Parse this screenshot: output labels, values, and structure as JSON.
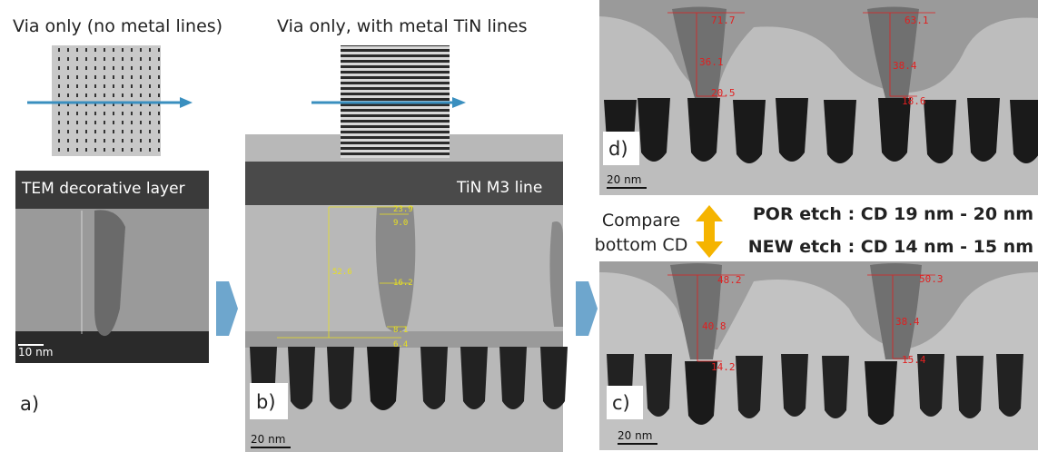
{
  "panel_a": {
    "title": "Via only (no metal lines)",
    "overlay": "TEM decorative layer",
    "scale_bar": "10 nm",
    "label": "a)"
  },
  "panel_b": {
    "title": "Via only, with metal TiN lines",
    "overlay": "TiN M3 line",
    "scale_bar": "20 nm",
    "label": "b)",
    "measurements": [
      "23.9",
      "9.0",
      "52.6",
      "16.2",
      "8.1",
      "6.4"
    ]
  },
  "panel_d": {
    "label": "d)",
    "scale_bar": "20 nm",
    "measurements": [
      "71.7",
      "63.1",
      "36.1",
      "38.4",
      "20.5",
      "18.6"
    ]
  },
  "comparison": {
    "caption": [
      "Compare",
      "bottom CD"
    ],
    "por": "POR etch : CD 19 nm - 20 nm",
    "new": "NEW etch : CD 14 nm - 15 nm"
  },
  "panel_c": {
    "label": "c)",
    "scale_bar": "20 nm",
    "measurements": [
      "48.2",
      "50.3",
      "40.8",
      "38.4",
      "14.2",
      "15.4"
    ]
  }
}
